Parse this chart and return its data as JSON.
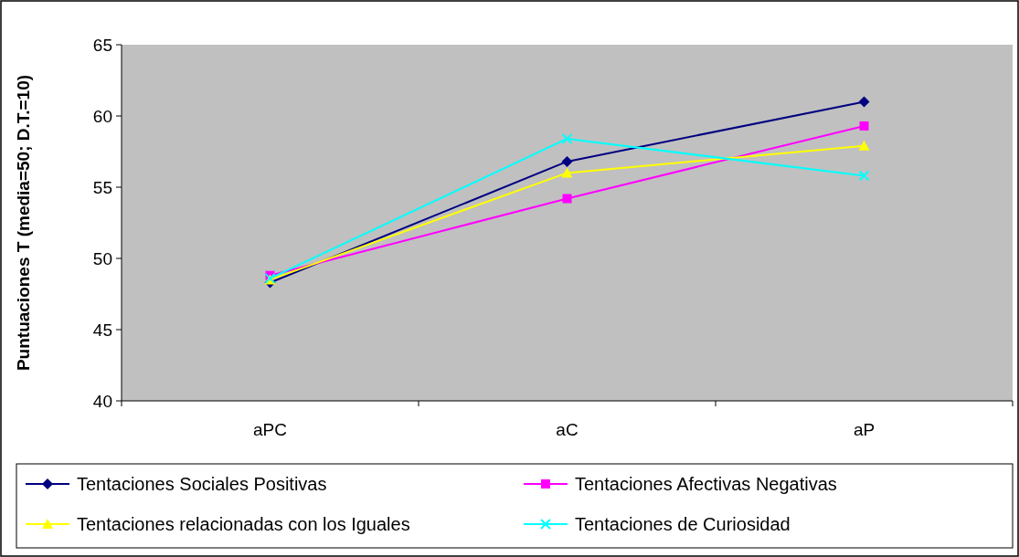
{
  "chart_data": {
    "type": "line",
    "ylabel": "Puntuaciones T (media=50; D.T.=10)",
    "categories": [
      "aPC",
      "aC",
      "aP"
    ],
    "ylim": [
      40,
      65
    ],
    "yticks": [
      40,
      45,
      50,
      55,
      60,
      65
    ],
    "grid": false,
    "legend": "bottom",
    "series": [
      {
        "name": "Tentaciones Sociales Positivas",
        "color": "#000080",
        "marker": "diamond",
        "values": [
          48.3,
          56.8,
          61.0
        ]
      },
      {
        "name": "Tentaciones Afectivas Negativas",
        "color": "#ff00ff",
        "marker": "square",
        "values": [
          48.8,
          54.2,
          59.3
        ]
      },
      {
        "name": "Tentaciones relacionadas con los Iguales",
        "color": "#ffff00",
        "marker": "triangle",
        "values": [
          48.5,
          56.0,
          57.9
        ]
      },
      {
        "name": "Tentaciones de Curiosidad",
        "color": "#00ffff",
        "marker": "cross",
        "values": [
          48.6,
          58.4,
          55.8
        ]
      }
    ]
  }
}
